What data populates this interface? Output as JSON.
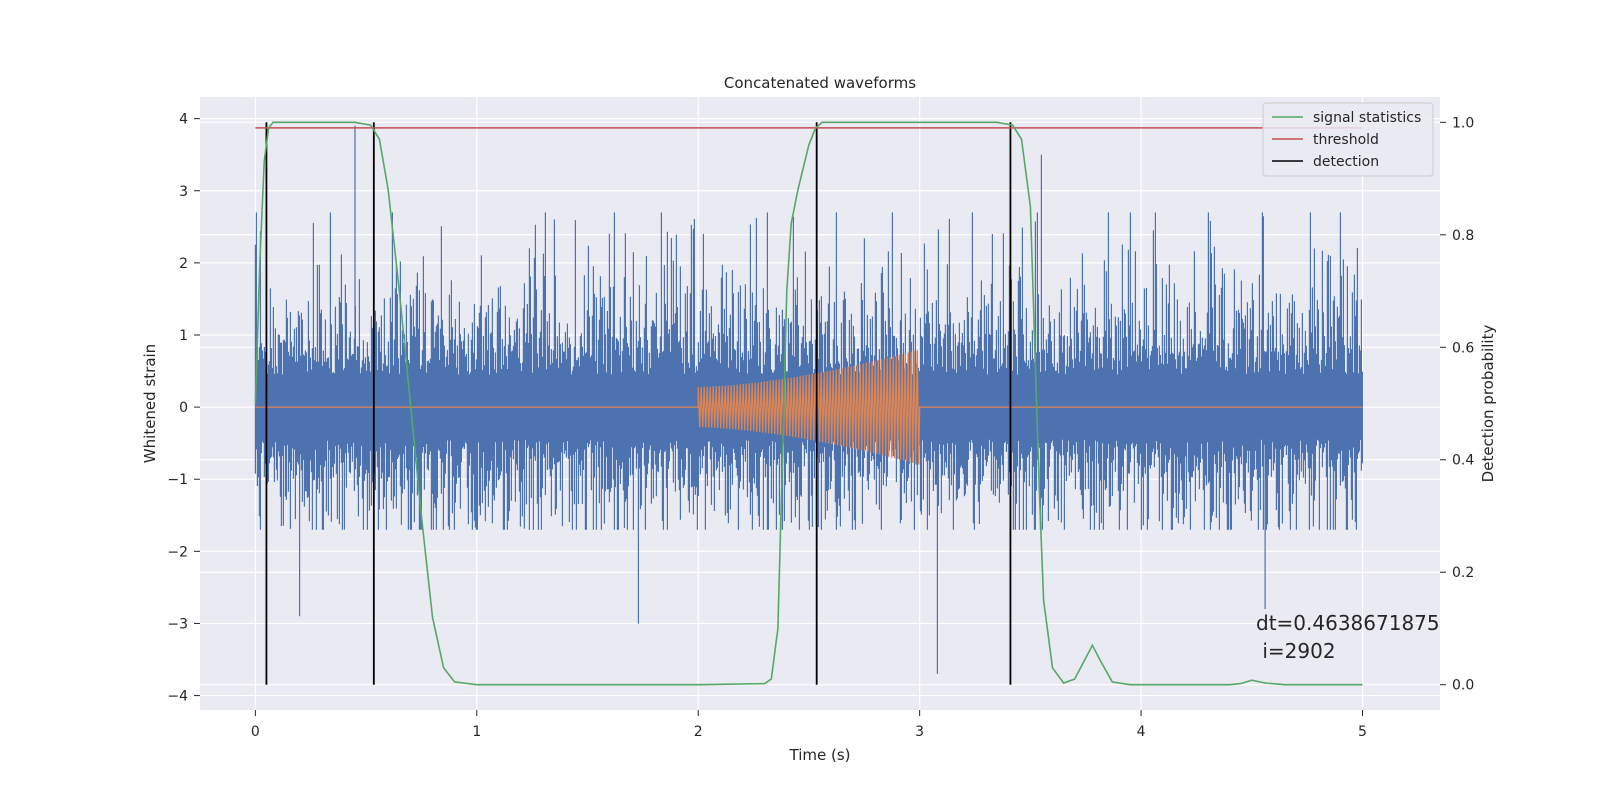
{
  "chart_data": {
    "type": "line",
    "title": "Concatenated waveforms",
    "xlabel": "Time (s)",
    "ylabel_left": "Whitened strain",
    "ylabel_right": "Detection probability",
    "xlim": [
      -0.25,
      5.35
    ],
    "ylim_left": [
      -4.2,
      4.3
    ],
    "ylim_right": [
      -0.045,
      1.045
    ],
    "x_ticks": [
      "0",
      "1",
      "2",
      "3",
      "4",
      "5"
    ],
    "x_tick_values": [
      0,
      1,
      2,
      3,
      4,
      5
    ],
    "y_ticks_left": [
      "−4",
      "−3",
      "−2",
      "−1",
      "0",
      "1",
      "2",
      "3",
      "4"
    ],
    "y_tick_values_left": [
      -4,
      -3,
      -2,
      -1,
      0,
      1,
      2,
      3,
      4
    ],
    "y_ticks_right": [
      "0.0",
      "0.2",
      "0.4",
      "0.6",
      "0.8",
      "1.0"
    ],
    "y_tick_values_right": [
      0,
      0.2,
      0.4,
      0.6,
      0.8,
      1.0
    ],
    "grid": true,
    "legend_position": "top-right",
    "legend": [
      "signal statistics",
      "threshold",
      "detection"
    ],
    "colors": {
      "strain": "#4c72b0",
      "injected": "#dd8452",
      "signal_statistics": "#55a868",
      "threshold": "#c44e52",
      "detection": "#000000",
      "background": "#eaeaf2"
    },
    "series": [
      {
        "axis": "left",
        "color": "strain",
        "description": "whitened strain noise",
        "x_range": [
          0,
          5
        ],
        "typical_range": [
          -1.7,
          2.7
        ],
        "extremes": [
          -3.7,
          3.9
        ]
      },
      {
        "axis": "left",
        "color": "injected",
        "description": "injected chirp waveform",
        "x_range": [
          0,
          5
        ],
        "chirp_range": [
          2,
          3
        ],
        "amplitude_start": 0.28,
        "amplitude_end": 0.8
      },
      {
        "name": "signal statistics",
        "axis": "right",
        "color": "signal_statistics",
        "x": [
          0,
          0.02,
          0.04,
          0.06,
          0.08,
          0.1,
          0.15,
          0.45,
          0.52,
          0.56,
          0.6,
          0.65,
          0.7,
          0.75,
          0.8,
          0.85,
          0.9,
          1.0,
          2.0,
          2.3,
          2.33,
          2.36,
          2.38,
          2.4,
          2.42,
          2.45,
          2.5,
          2.53,
          2.56,
          2.6,
          2.7,
          3.35,
          3.42,
          3.46,
          3.5,
          3.52,
          3.54,
          3.56,
          3.6,
          3.65,
          3.7,
          3.74,
          3.78,
          3.82,
          3.87,
          3.95,
          4.4,
          4.45,
          4.5,
          4.56,
          4.65,
          5.0
        ],
        "values": [
          0.5,
          0.75,
          0.93,
          0.99,
          1.0,
          1.0,
          1.0,
          1.0,
          0.995,
          0.97,
          0.88,
          0.7,
          0.5,
          0.3,
          0.12,
          0.03,
          0.005,
          0.0,
          0.0,
          0.002,
          0.01,
          0.1,
          0.4,
          0.7,
          0.82,
          0.88,
          0.96,
          0.99,
          1.0,
          1.0,
          1.0,
          1.0,
          0.995,
          0.97,
          0.85,
          0.6,
          0.35,
          0.15,
          0.03,
          0.003,
          0.01,
          0.04,
          0.07,
          0.04,
          0.005,
          0.0,
          0.0,
          0.002,
          0.008,
          0.003,
          0.0,
          0.0
        ]
      },
      {
        "name": "threshold",
        "axis": "right",
        "color": "threshold",
        "x": [
          0,
          5
        ],
        "values": [
          0.99,
          0.99
        ]
      },
      {
        "name": "detection",
        "axis": "right",
        "color": "detection",
        "type": "vlines",
        "x": [
          0.05,
          0.535,
          2.535,
          3.41
        ],
        "ymin": 0,
        "ymax": 1.0
      }
    ],
    "annotation": {
      "line1": "dt=0.4638671875",
      "line2": " i=2902"
    }
  }
}
